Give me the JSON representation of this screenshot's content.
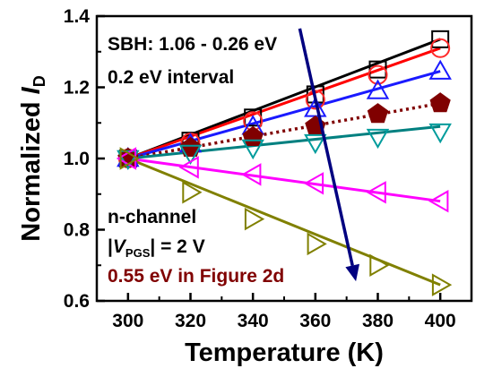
{
  "chart_data": {
    "type": "line",
    "title": "",
    "xlabel": "Temperature (K)",
    "ylabel": {
      "prefix": "Normalized ",
      "var": "I",
      "sub": "D"
    },
    "xlim": [
      290,
      410
    ],
    "ylim": [
      0.6,
      1.4
    ],
    "xticks": [
      "300",
      "320",
      "340",
      "360",
      "380",
      "400"
    ],
    "yticks": [
      "0.6",
      "0.8",
      "1.0",
      "1.2",
      "1.4"
    ],
    "x": [
      300,
      320,
      340,
      360,
      380,
      400
    ],
    "series": [
      {
        "marker": "square",
        "color": "#000000",
        "line_color": "#000000",
        "line": "solid",
        "fit": [
          1.0,
          1.335
        ],
        "values": [
          1.0,
          1.05,
          1.115,
          1.18,
          1.25,
          1.335
        ]
      },
      {
        "marker": "circle",
        "color": "#ff2a2a",
        "line_color": "#ff0000",
        "line": "solid",
        "fit": [
          1.0,
          1.31
        ],
        "values": [
          1.0,
          1.045,
          1.105,
          1.165,
          1.235,
          1.31
        ]
      },
      {
        "marker": "triangle-up",
        "color": "#1a1aff",
        "line_color": "#1a1aff",
        "line": "solid",
        "fit": [
          1.0,
          1.245
        ],
        "values": [
          1.0,
          1.04,
          1.09,
          1.14,
          1.19,
          1.245
        ]
      },
      {
        "marker": "pentagon",
        "color": "#800000",
        "line_color": "#800000",
        "line": "dotted",
        "filled": true,
        "fit": [
          1.0,
          1.155
        ],
        "values": [
          1.0,
          1.03,
          1.06,
          1.09,
          1.125,
          1.155
        ]
      },
      {
        "marker": "triangle-down",
        "color": "#009c9c",
        "line_color": "#008080",
        "line": "solid",
        "fit": [
          1.0,
          1.09
        ],
        "values": [
          1.0,
          1.015,
          1.03,
          1.045,
          1.06,
          1.075
        ]
      },
      {
        "marker": "triangle-left",
        "color": "#ff00ff",
        "line_color": "#ff00ff",
        "line": "solid",
        "fit": [
          1.0,
          0.88
        ],
        "values": [
          1.0,
          0.975,
          0.955,
          0.93,
          0.905,
          0.88
        ]
      },
      {
        "marker": "triangle-right",
        "color": "#808000",
        "line_color": "#808000",
        "line": "solid",
        "fit": [
          1.0,
          0.645
        ],
        "values": [
          1.0,
          0.905,
          0.83,
          0.76,
          0.7,
          0.645
        ]
      }
    ],
    "arrow": {
      "from": [
        355,
        1.365
      ],
      "to": [
        373,
        0.655
      ],
      "color": "#000080"
    },
    "annotations": {
      "sbh": "SBH: 1.06 - 0.26 eV",
      "interval": "0.2 eV interval",
      "channel": "n-channel",
      "vpgs_open": "|",
      "vpgs_var": "V",
      "vpgs_sub": "PGS",
      "vpgs_close": "| = 2 V",
      "ref": "0.55 eV in Figure 2d",
      "ref_color": "#800000"
    }
  }
}
